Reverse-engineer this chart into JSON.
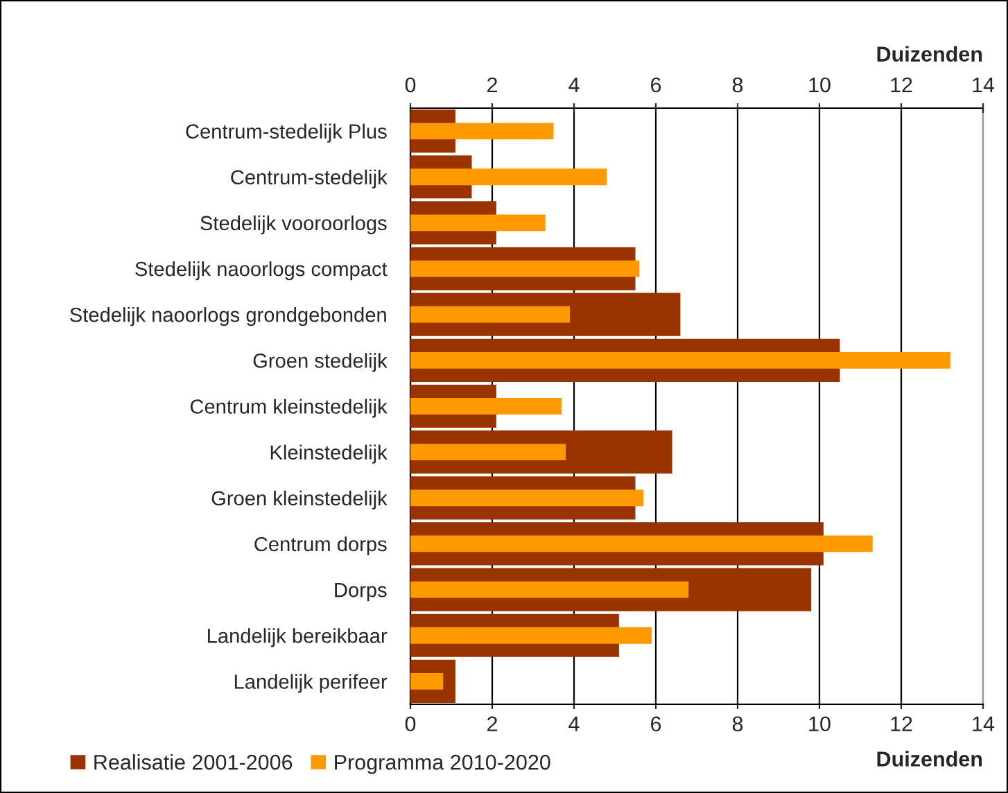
{
  "chart_data": {
    "type": "bar",
    "orientation": "horizontal",
    "categories": [
      "Centrum-stedelijk Plus",
      "Centrum-stedelijk",
      "Stedelijk vooroorlogs",
      "Stedelijk naoorlogs compact",
      "Stedelijk naoorlogs grondgebonden",
      "Groen stedelijk",
      "Centrum kleinstedelijk",
      "Kleinstedelijk",
      "Groen kleinstedelijk",
      "Centrum dorps",
      "Dorps",
      "Landelijk bereikbaar",
      "Landelijk perifeer"
    ],
    "series": [
      {
        "name": "Realisatie 2001-2006",
        "color": "#993300",
        "values": [
          1.1,
          1.5,
          2.1,
          5.5,
          6.6,
          10.5,
          2.1,
          6.4,
          5.5,
          10.1,
          9.8,
          5.1,
          1.1
        ]
      },
      {
        "name": "Programma 2010-2020",
        "color": "#ff9900",
        "values": [
          3.5,
          4.8,
          3.3,
          5.6,
          3.9,
          13.2,
          3.7,
          3.8,
          5.7,
          11.3,
          6.8,
          5.9,
          0.8
        ]
      }
    ],
    "xlim": [
      0,
      14
    ],
    "xticks": [
      0,
      2,
      4,
      6,
      8,
      10,
      12,
      14
    ],
    "x2lim": [
      0,
      14
    ],
    "x2ticks": [
      0,
      2,
      4,
      6,
      8,
      10,
      12,
      14
    ],
    "xlabel": "Duizenden",
    "x2label": "Duizenden",
    "grid": "x",
    "legend": "bottom left"
  }
}
